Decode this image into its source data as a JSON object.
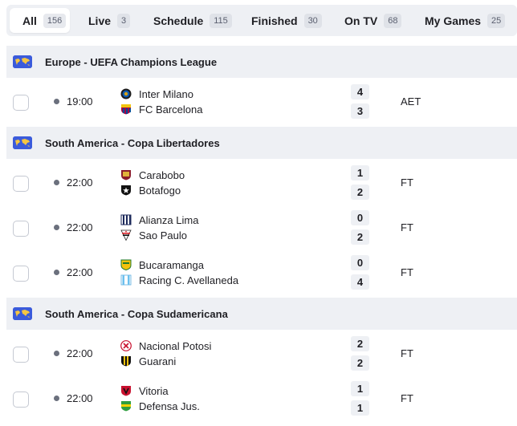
{
  "tabs": [
    {
      "label": "All",
      "count": "156"
    },
    {
      "label": "Live",
      "count": "3"
    },
    {
      "label": "Schedule",
      "count": "115"
    },
    {
      "label": "Finished",
      "count": "30"
    },
    {
      "label": "On TV",
      "count": "68"
    },
    {
      "label": "My Games",
      "count": "25"
    }
  ],
  "leagues": [
    {
      "name": "Europe - UEFA Champions League",
      "matches": [
        {
          "time": "19:00",
          "home": "Inter Milano",
          "away": "FC Barcelona",
          "home_score": "4",
          "away_score": "3",
          "status": "AET"
        }
      ]
    },
    {
      "name": "South America - Copa Libertadores",
      "matches": [
        {
          "time": "22:00",
          "home": "Carabobo",
          "away": "Botafogo",
          "home_score": "1",
          "away_score": "2",
          "status": "FT"
        },
        {
          "time": "22:00",
          "home": "Alianza Lima",
          "away": "Sao Paulo",
          "home_score": "0",
          "away_score": "2",
          "status": "FT"
        },
        {
          "time": "22:00",
          "home": "Bucaramanga",
          "away": "Racing C. Avellaneda",
          "home_score": "0",
          "away_score": "4",
          "status": "FT"
        }
      ]
    },
    {
      "name": "South America - Copa Sudamericana",
      "matches": [
        {
          "time": "22:00",
          "home": "Nacional Potosi",
          "away": "Guarani",
          "home_score": "2",
          "away_score": "2",
          "status": "FT"
        },
        {
          "time": "22:00",
          "home": "Vitoria",
          "away": "Defensa Jus.",
          "home_score": "1",
          "away_score": "1",
          "status": "FT"
        }
      ]
    }
  ]
}
